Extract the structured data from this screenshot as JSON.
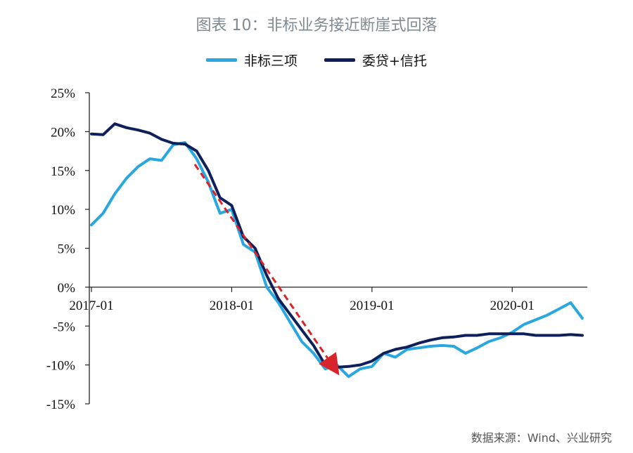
{
  "chart_data": {
    "type": "line",
    "title": "图表 10：非标业务接近断崖式回落",
    "xlabel": "",
    "ylabel": "",
    "ylim": [
      -15,
      25
    ],
    "yticks": [
      25,
      20,
      15,
      10,
      5,
      0,
      -5,
      -10,
      -15
    ],
    "ytick_labels": [
      "25%",
      "20%",
      "15%",
      "10%",
      "5%",
      "0%",
      "-5%",
      "-10%",
      "-15%"
    ],
    "xlim": [
      0,
      42
    ],
    "xticks": [
      0,
      12,
      24,
      36
    ],
    "xtick_labels": [
      "2017-01",
      "2018-01",
      "2019-01",
      "2020-01"
    ],
    "legend_position": "top-center",
    "annotation": "red dashed downward arrow indicating the sharp decline from late 2017 to late 2018",
    "series": [
      {
        "name": "非标三项",
        "color": "#29a8e0",
        "x": [
          0,
          1,
          2,
          3,
          4,
          5,
          6,
          7,
          8,
          9,
          10,
          11,
          12,
          13,
          14,
          15,
          16,
          17,
          18,
          19,
          20,
          21,
          22,
          23,
          24,
          25,
          26,
          27,
          28,
          29,
          30,
          31,
          32,
          33,
          34,
          35,
          36,
          37,
          38,
          39,
          40,
          41,
          42
        ],
        "values": [
          8.0,
          9.5,
          12.0,
          14.0,
          15.5,
          16.5,
          16.3,
          18.3,
          18.6,
          16.5,
          13.5,
          9.5,
          10.0,
          5.5,
          4.5,
          0.0,
          -2.0,
          -4.5,
          -7.0,
          -8.5,
          -10.5,
          -10.0,
          -11.5,
          -10.5,
          -10.2,
          -8.5,
          -9.0,
          -8.0,
          -7.8,
          -7.6,
          -7.5,
          -7.6,
          -8.5,
          -7.8,
          -7.0,
          -6.5,
          -5.8,
          -4.8,
          -4.2,
          -3.6,
          -2.8,
          -2.0,
          -4.0
        ]
      },
      {
        "name": "委贷+信托",
        "color": "#0e1f5a",
        "x": [
          0,
          1,
          2,
          3,
          4,
          5,
          6,
          7,
          8,
          9,
          10,
          11,
          12,
          13,
          14,
          15,
          16,
          17,
          18,
          19,
          20,
          21,
          22,
          23,
          24,
          25,
          26,
          27,
          28,
          29,
          30,
          31,
          32,
          33,
          34,
          35,
          36,
          37,
          38,
          39,
          40,
          41,
          42
        ],
        "values": [
          19.7,
          19.6,
          21.0,
          20.5,
          20.2,
          19.8,
          19.0,
          18.5,
          18.4,
          17.5,
          15.0,
          11.5,
          10.5,
          6.5,
          5.0,
          1.5,
          -1.5,
          -3.5,
          -5.5,
          -7.5,
          -10.0,
          -10.3,
          -10.2,
          -10.0,
          -9.5,
          -8.5,
          -8.0,
          -7.7,
          -7.2,
          -6.8,
          -6.5,
          -6.4,
          -6.2,
          -6.2,
          -6.0,
          -6.0,
          -6.0,
          -6.0,
          -6.2,
          -6.2,
          -6.2,
          -6.1,
          -6.2
        ]
      }
    ]
  },
  "source_note": "数据来源：Wind、兴业研究"
}
